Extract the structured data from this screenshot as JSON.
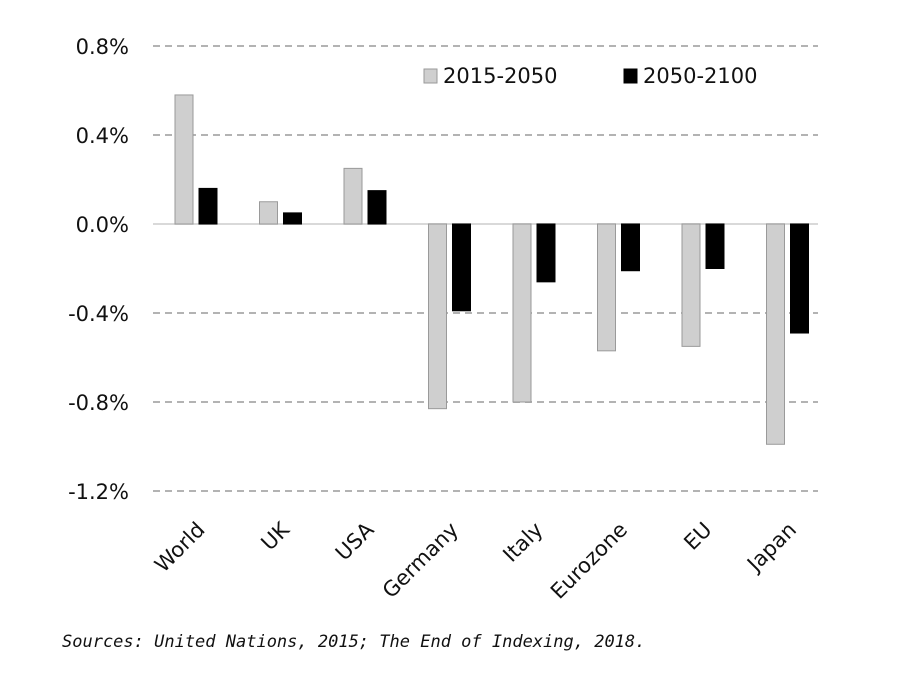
{
  "chart_data": {
    "type": "bar",
    "categories": [
      "World",
      "UK",
      "USA",
      "Germany",
      "Italy",
      "Eurozone",
      "EU",
      "Japan"
    ],
    "series": [
      {
        "name": "2015-2050",
        "values": [
          0.58,
          0.1,
          0.25,
          -0.83,
          -0.8,
          -0.57,
          -0.55,
          -0.99
        ],
        "color": "#cfcfcf",
        "stroke": "#9a9a9a"
      },
      {
        "name": "2050-2100",
        "values": [
          0.16,
          0.05,
          0.15,
          -0.39,
          -0.26,
          -0.21,
          -0.2,
          -0.49
        ],
        "color": "#000000",
        "stroke": "#000000"
      }
    ],
    "yticks": [
      "0.8%",
      "0.4%",
      "0.0%",
      "-0.4%",
      "-0.8%",
      "-1.2%"
    ],
    "ytick_values": [
      0.8,
      0.4,
      0.0,
      -0.4,
      -0.8,
      -1.2
    ],
    "ylim": [
      -1.2,
      0.8
    ],
    "grid": true,
    "grid_style": "dashed",
    "legend_position": "top-right"
  },
  "source_text": "Sources: United Nations, 2015; The End of Indexing, 2018."
}
